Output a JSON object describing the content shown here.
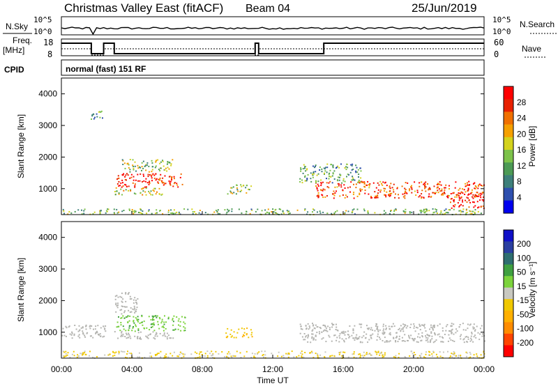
{
  "header": {
    "title": "Christmas Valley East (fitACF)",
    "beam": "Beam 04",
    "date": "25/Jun/2019"
  },
  "top_panels": {
    "nsky_label": "N.Sky",
    "nsky_ticks": [
      "10^5",
      "10^0"
    ],
    "nsearch_label": "N.Search",
    "nsearch_ticks": [
      "10^5",
      "10^0"
    ],
    "freq_label_1": "Freq.",
    "freq_label_2": "[MHz]",
    "freq_ticks": [
      "18",
      "8"
    ],
    "nave_label": "Nave",
    "nave_ticks": [
      "60",
      "0"
    ],
    "cpid_label": "CPID",
    "cpid_value": "normal (fast) 151 RF"
  },
  "colors": {
    "power_scale": [
      "#0000ee",
      "#2e4fae",
      "#3d7f7a",
      "#4c9a55",
      "#7dc24a",
      "#d4d21c",
      "#f5a000",
      "#f07000",
      "#e82000",
      "#ff0000"
    ],
    "velocity_scale": [
      "#ff0000",
      "#ff4500",
      "#ff8c00",
      "#ffb000",
      "#f0c800",
      "#c8c8c0",
      "#7cd33c",
      "#3fa040",
      "#2e6e70",
      "#2a3fa0",
      "#1010c8"
    ],
    "ground_scatter": "#b4b4b0"
  },
  "chart_data": [
    {
      "type": "heatmap",
      "name": "power",
      "ylabel": "Slant Range [km]",
      "xlabel": "Time UT",
      "x_ticks": [
        "00:00",
        "04:00",
        "08:00",
        "12:00",
        "16:00",
        "20:00",
        "00:00"
      ],
      "xlim_hours": [
        0,
        24
      ],
      "y_ticks": [
        1000,
        2000,
        3000,
        4000
      ],
      "ylim_km": [
        180,
        4500
      ],
      "colorbar_label": "Power [dB]",
      "colorbar_ticks": [
        "28",
        "24",
        "20",
        "16",
        "12",
        "8",
        "4"
      ],
      "clim": [
        0,
        30
      ],
      "regions": [
        {
          "t0": 3.1,
          "t1": 6.9,
          "r0": 1050,
          "r1": 1500,
          "level": 0.95
        },
        {
          "t0": 3.4,
          "t1": 6.3,
          "r0": 1550,
          "r1": 1950,
          "level": 0.45
        },
        {
          "t0": 3.0,
          "t1": 6.0,
          "r0": 820,
          "r1": 1050,
          "level": 0.55
        },
        {
          "t0": 9.3,
          "t1": 10.8,
          "r0": 850,
          "r1": 1150,
          "level": 0.5
        },
        {
          "t0": 14.4,
          "t1": 24.0,
          "r0": 720,
          "r1": 1250,
          "level": 0.85
        },
        {
          "t0": 13.5,
          "t1": 17.0,
          "r0": 1200,
          "r1": 1800,
          "level": 0.35
        },
        {
          "t0": 22.0,
          "t1": 24.0,
          "r0": 400,
          "r1": 900,
          "level": 1.0
        },
        {
          "t0": 0.0,
          "t1": 24.0,
          "r0": 200,
          "r1": 380,
          "level": 0.4
        },
        {
          "t0": 1.5,
          "t1": 2.3,
          "r0": 3200,
          "r1": 3500,
          "level": 0.3
        }
      ]
    },
    {
      "type": "heatmap",
      "name": "velocity",
      "ylabel": "Slant Range [km]",
      "xlabel": "Time UT",
      "x_ticks": [
        "00:00",
        "04:00",
        "08:00",
        "12:00",
        "16:00",
        "20:00",
        "00:00"
      ],
      "xlim_hours": [
        0,
        24
      ],
      "y_ticks": [
        1000,
        2000,
        3000,
        4000
      ],
      "ylim_km": [
        180,
        4500
      ],
      "colorbar_label": "Velocity [m s⁻¹]",
      "colorbar_ticks": [
        "200",
        "100",
        "50",
        "15",
        "-15",
        "-50",
        "-100",
        "-200"
      ],
      "clim": [
        -250,
        250
      ],
      "regions": [
        {
          "t0": 3.0,
          "t1": 4.3,
          "r0": 1600,
          "r1": 2300,
          "kind": "ground"
        },
        {
          "t0": 3.1,
          "t1": 7.0,
          "r0": 1050,
          "r1": 1550,
          "vel": 60
        },
        {
          "t0": 3.0,
          "t1": 6.5,
          "r0": 800,
          "r1": 1050,
          "kind": "ground"
        },
        {
          "t0": 9.3,
          "t1": 10.8,
          "r0": 850,
          "r1": 1150,
          "vel": -60
        },
        {
          "t0": 13.5,
          "t1": 24.0,
          "r0": 700,
          "r1": 1300,
          "kind": "ground"
        },
        {
          "t0": 0.0,
          "t1": 24.0,
          "r0": 200,
          "r1": 420,
          "vel": -30
        },
        {
          "t0": 0.0,
          "t1": 2.5,
          "r0": 800,
          "r1": 1250,
          "kind": "ground"
        }
      ]
    }
  ]
}
